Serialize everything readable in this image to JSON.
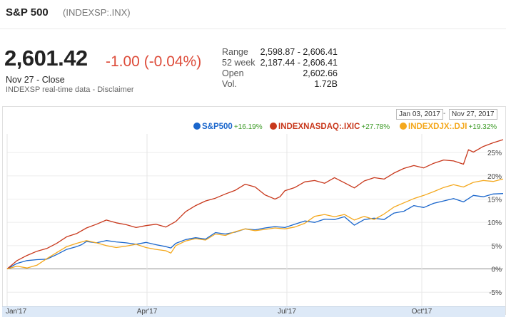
{
  "header": {
    "title": "S&P 500",
    "ticker": "(INDEXSP:.INX)"
  },
  "quote": {
    "price": "2,601.42",
    "change": "-1.00 (-0.04%)",
    "close_label": "Nov 27 - Close",
    "source": "INDEXSP real-time data",
    "separator": " - ",
    "disclaimer_link": "Disclaimer"
  },
  "stats": [
    {
      "label": "Range",
      "value": "2,598.87 - 2,606.41"
    },
    {
      "label": "52 week",
      "value": "2,187.44 - 2,606.41"
    },
    {
      "label": "Open",
      "value": "2,602.66"
    },
    {
      "label": "Vol.",
      "value": "1.72B"
    }
  ],
  "daterange": {
    "start": "Jan 03, 2017",
    "separator": "-",
    "end": "Nov 27, 2017"
  },
  "colors": {
    "sp500": "#1a66cc",
    "ixic": "#c8381c",
    "dji": "#f4a81d",
    "change_negative": "#dd4b39",
    "pct_positive": "#3c9a26"
  },
  "chart_data": {
    "type": "line",
    "xlabels": [
      "Jan'17",
      "Apr'17",
      "Jul'17",
      "Oct'17"
    ],
    "ytick_labels": [
      "25%",
      "20%",
      "15%",
      "10%",
      "5%",
      "0%",
      "-5%"
    ],
    "yticks": [
      25,
      20,
      15,
      10,
      5,
      0,
      -5
    ],
    "ylim": [
      -6.5,
      29
    ],
    "xlim": [
      0,
      1
    ],
    "x_tick_positions": [
      0.0,
      0.282,
      0.564,
      0.836
    ],
    "grid": true,
    "legend_position": "top-right",
    "series": [
      {
        "name": "S&P500",
        "change": "+16.19%",
        "color": "#1a66cc",
        "points": [
          [
            0,
            0
          ],
          [
            0.02,
            1.2
          ],
          [
            0.04,
            1.8
          ],
          [
            0.06,
            2.0
          ],
          [
            0.08,
            2.1
          ],
          [
            0.1,
            3.1
          ],
          [
            0.12,
            4.2
          ],
          [
            0.14,
            4.8
          ],
          [
            0.15,
            5.2
          ],
          [
            0.16,
            5.9
          ],
          [
            0.18,
            5.6
          ],
          [
            0.2,
            6.1
          ],
          [
            0.22,
            5.8
          ],
          [
            0.24,
            5.6
          ],
          [
            0.26,
            5.3
          ],
          [
            0.28,
            5.7
          ],
          [
            0.3,
            5.2
          ],
          [
            0.32,
            4.8
          ],
          [
            0.33,
            4.5
          ],
          [
            0.34,
            5.5
          ],
          [
            0.36,
            6.3
          ],
          [
            0.38,
            6.7
          ],
          [
            0.4,
            6.4
          ],
          [
            0.42,
            7.8
          ],
          [
            0.44,
            7.5
          ],
          [
            0.46,
            7.9
          ],
          [
            0.48,
            8.6
          ],
          [
            0.5,
            8.4
          ],
          [
            0.52,
            8.8
          ],
          [
            0.54,
            9.1
          ],
          [
            0.56,
            8.9
          ],
          [
            0.58,
            9.6
          ],
          [
            0.6,
            10.3
          ],
          [
            0.62,
            10.0
          ],
          [
            0.64,
            10.7
          ],
          [
            0.66,
            10.6
          ],
          [
            0.68,
            11.2
          ],
          [
            0.7,
            9.4
          ],
          [
            0.72,
            10.6
          ],
          [
            0.74,
            10.9
          ],
          [
            0.76,
            10.6
          ],
          [
            0.78,
            12.0
          ],
          [
            0.8,
            12.4
          ],
          [
            0.82,
            13.6
          ],
          [
            0.84,
            13.2
          ],
          [
            0.86,
            14.1
          ],
          [
            0.88,
            14.6
          ],
          [
            0.9,
            15.1
          ],
          [
            0.92,
            14.4
          ],
          [
            0.94,
            15.8
          ],
          [
            0.96,
            15.5
          ],
          [
            0.98,
            16.1
          ],
          [
            1.0,
            16.19
          ]
        ]
      },
      {
        "name": "INDEXNASDAQ:.IXIC",
        "change": "+27.78%",
        "color": "#c8381c",
        "points": [
          [
            0,
            0
          ],
          [
            0.02,
            1.8
          ],
          [
            0.04,
            2.9
          ],
          [
            0.06,
            3.8
          ],
          [
            0.08,
            4.4
          ],
          [
            0.1,
            5.5
          ],
          [
            0.12,
            6.9
          ],
          [
            0.14,
            7.6
          ],
          [
            0.16,
            8.8
          ],
          [
            0.18,
            9.6
          ],
          [
            0.2,
            10.5
          ],
          [
            0.22,
            9.9
          ],
          [
            0.24,
            9.5
          ],
          [
            0.26,
            8.9
          ],
          [
            0.28,
            9.3
          ],
          [
            0.3,
            9.6
          ],
          [
            0.32,
            9.0
          ],
          [
            0.34,
            10.2
          ],
          [
            0.36,
            12.3
          ],
          [
            0.38,
            13.6
          ],
          [
            0.4,
            14.6
          ],
          [
            0.42,
            15.2
          ],
          [
            0.44,
            16.1
          ],
          [
            0.46,
            16.9
          ],
          [
            0.48,
            18.2
          ],
          [
            0.5,
            17.6
          ],
          [
            0.52,
            15.9
          ],
          [
            0.54,
            15.0
          ],
          [
            0.55,
            15.5
          ],
          [
            0.56,
            16.8
          ],
          [
            0.58,
            17.5
          ],
          [
            0.6,
            18.7
          ],
          [
            0.62,
            19.0
          ],
          [
            0.64,
            18.4
          ],
          [
            0.66,
            19.6
          ],
          [
            0.68,
            18.5
          ],
          [
            0.7,
            17.4
          ],
          [
            0.72,
            18.9
          ],
          [
            0.74,
            19.6
          ],
          [
            0.76,
            19.3
          ],
          [
            0.78,
            20.6
          ],
          [
            0.8,
            21.6
          ],
          [
            0.82,
            22.2
          ],
          [
            0.84,
            21.7
          ],
          [
            0.86,
            22.7
          ],
          [
            0.88,
            23.4
          ],
          [
            0.9,
            23.2
          ],
          [
            0.92,
            22.5
          ],
          [
            0.93,
            25.6
          ],
          [
            0.94,
            25.1
          ],
          [
            0.96,
            26.3
          ],
          [
            0.98,
            27.1
          ],
          [
            1.0,
            27.78
          ]
        ]
      },
      {
        "name": "INDEXDJX:.DJI",
        "change": "+19.32%",
        "color": "#f4a81d",
        "points": [
          [
            0,
            0
          ],
          [
            0.02,
            0.6
          ],
          [
            0.04,
            0.2
          ],
          [
            0.06,
            0.8
          ],
          [
            0.08,
            2.2
          ],
          [
            0.1,
            3.5
          ],
          [
            0.12,
            4.8
          ],
          [
            0.14,
            5.5
          ],
          [
            0.16,
            6.1
          ],
          [
            0.18,
            5.6
          ],
          [
            0.2,
            5.0
          ],
          [
            0.22,
            4.6
          ],
          [
            0.24,
            4.9
          ],
          [
            0.26,
            5.3
          ],
          [
            0.28,
            4.6
          ],
          [
            0.3,
            4.2
          ],
          [
            0.32,
            3.9
          ],
          [
            0.33,
            3.4
          ],
          [
            0.34,
            5.0
          ],
          [
            0.36,
            6.0
          ],
          [
            0.38,
            6.5
          ],
          [
            0.4,
            6.2
          ],
          [
            0.42,
            7.5
          ],
          [
            0.44,
            7.2
          ],
          [
            0.46,
            8.0
          ],
          [
            0.48,
            8.6
          ],
          [
            0.5,
            8.2
          ],
          [
            0.52,
            8.5
          ],
          [
            0.54,
            8.8
          ],
          [
            0.56,
            8.6
          ],
          [
            0.58,
            9.0
          ],
          [
            0.6,
            9.8
          ],
          [
            0.62,
            11.3
          ],
          [
            0.64,
            11.7
          ],
          [
            0.66,
            11.2
          ],
          [
            0.68,
            11.7
          ],
          [
            0.7,
            10.5
          ],
          [
            0.72,
            11.3
          ],
          [
            0.74,
            10.6
          ],
          [
            0.76,
            11.8
          ],
          [
            0.78,
            13.3
          ],
          [
            0.8,
            14.2
          ],
          [
            0.82,
            15.1
          ],
          [
            0.84,
            15.8
          ],
          [
            0.86,
            16.6
          ],
          [
            0.88,
            17.5
          ],
          [
            0.9,
            18.1
          ],
          [
            0.92,
            17.6
          ],
          [
            0.94,
            18.6
          ],
          [
            0.96,
            19.0
          ],
          [
            0.98,
            18.8
          ],
          [
            1.0,
            19.32
          ]
        ]
      }
    ]
  }
}
